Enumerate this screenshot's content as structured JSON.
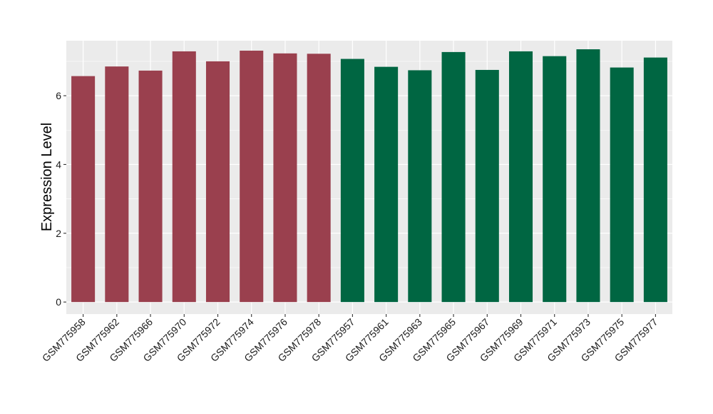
{
  "chart_data": {
    "type": "bar",
    "ylabel": "Expression Level",
    "xlabel": "",
    "ylim": [
      -0.35,
      7.6
    ],
    "yticks": [
      0,
      2,
      4,
      6
    ],
    "grid": true,
    "colors": {
      "panel": "#ebebeb",
      "grid": "#ffffff",
      "group1": "#9a404e",
      "group2": "#006642"
    },
    "categories": [
      "GSM775958",
      "GSM775962",
      "GSM775966",
      "GSM775970",
      "GSM775972",
      "GSM775974",
      "GSM775976",
      "GSM775978",
      "GSM775957",
      "GSM775961",
      "GSM775963",
      "GSM775965",
      "GSM775967",
      "GSM775969",
      "GSM775971",
      "GSM775973",
      "GSM775975",
      "GSM775977"
    ],
    "values": [
      6.57,
      6.85,
      6.73,
      7.29,
      7.0,
      7.31,
      7.23,
      7.22,
      7.07,
      6.84,
      6.74,
      7.27,
      6.75,
      7.29,
      7.15,
      7.35,
      6.82,
      7.11
    ],
    "groups": [
      1,
      1,
      1,
      1,
      1,
      1,
      1,
      1,
      2,
      2,
      2,
      2,
      2,
      2,
      2,
      2,
      2,
      2
    ]
  }
}
